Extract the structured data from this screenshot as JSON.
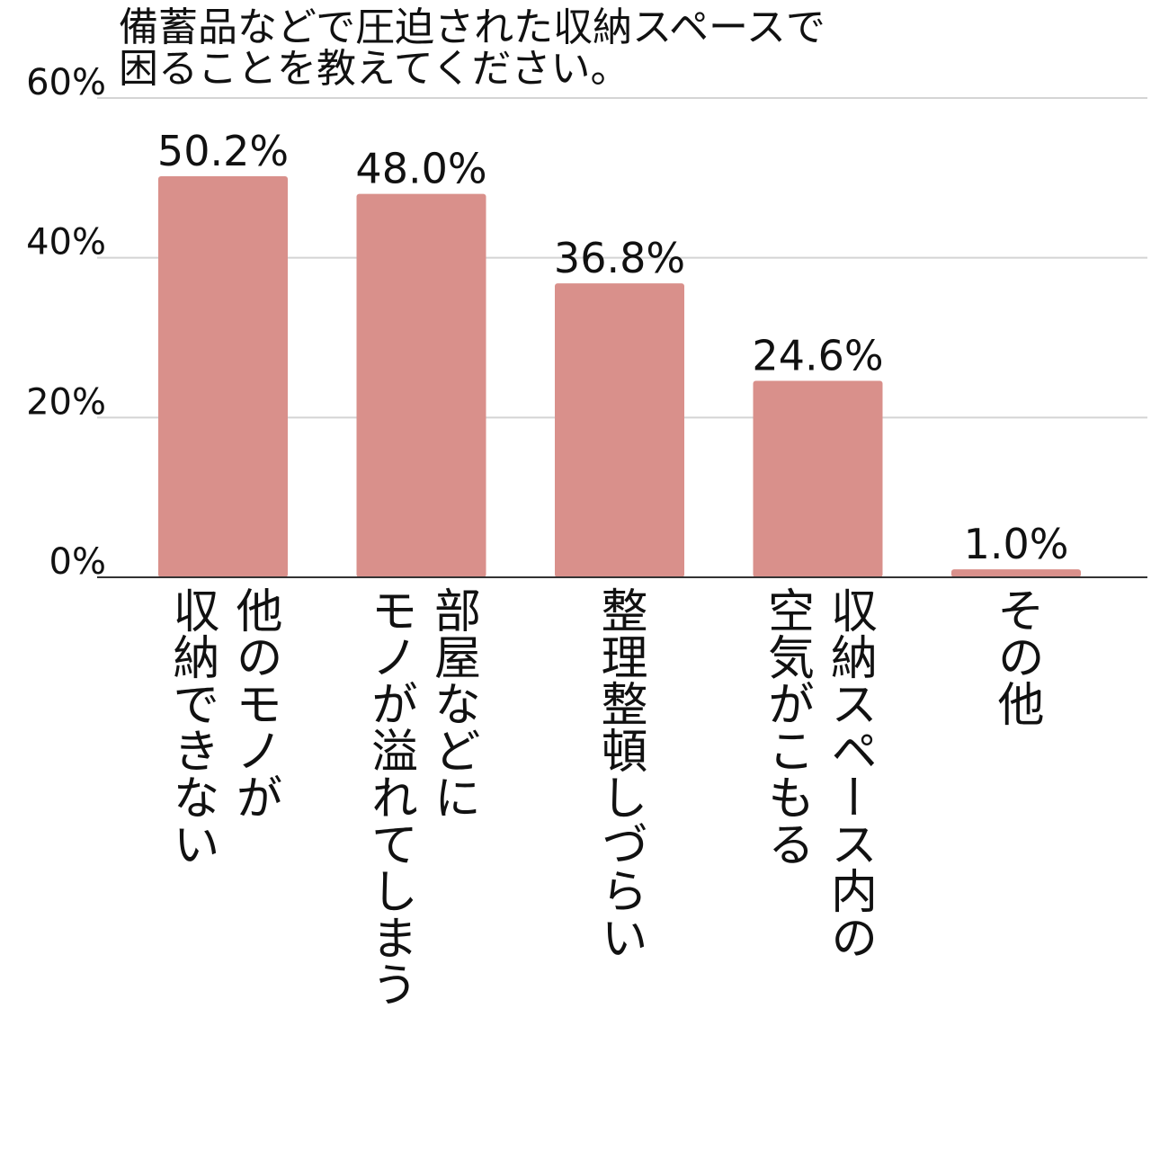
{
  "chart_data": {
    "type": "bar",
    "title_lines": [
      "備蓄品などで圧迫された収納スペースで",
      "困ることを教えてください。"
    ],
    "xlabel": "",
    "ylabel": "",
    "ylim": [
      0,
      60
    ],
    "yticks": [
      0,
      20,
      40,
      60
    ],
    "ytick_labels": [
      "0%",
      "20%",
      "40%",
      "60%"
    ],
    "grid": true,
    "legend": "none",
    "bar_color": "#d9908b",
    "categories": [
      [
        "他のモノが",
        "収納できない"
      ],
      [
        "部屋などに",
        "モノが溢れてしまう"
      ],
      [
        "整理整頓しづらい"
      ],
      [
        "収納スペース内の",
        "空気がこもる"
      ],
      [
        "その他"
      ]
    ],
    "values": [
      50.2,
      48.0,
      36.8,
      24.6,
      1.0
    ],
    "data_labels": [
      "50.2%",
      "48.0%",
      "36.8%",
      "24.6%",
      "1.0%"
    ]
  }
}
